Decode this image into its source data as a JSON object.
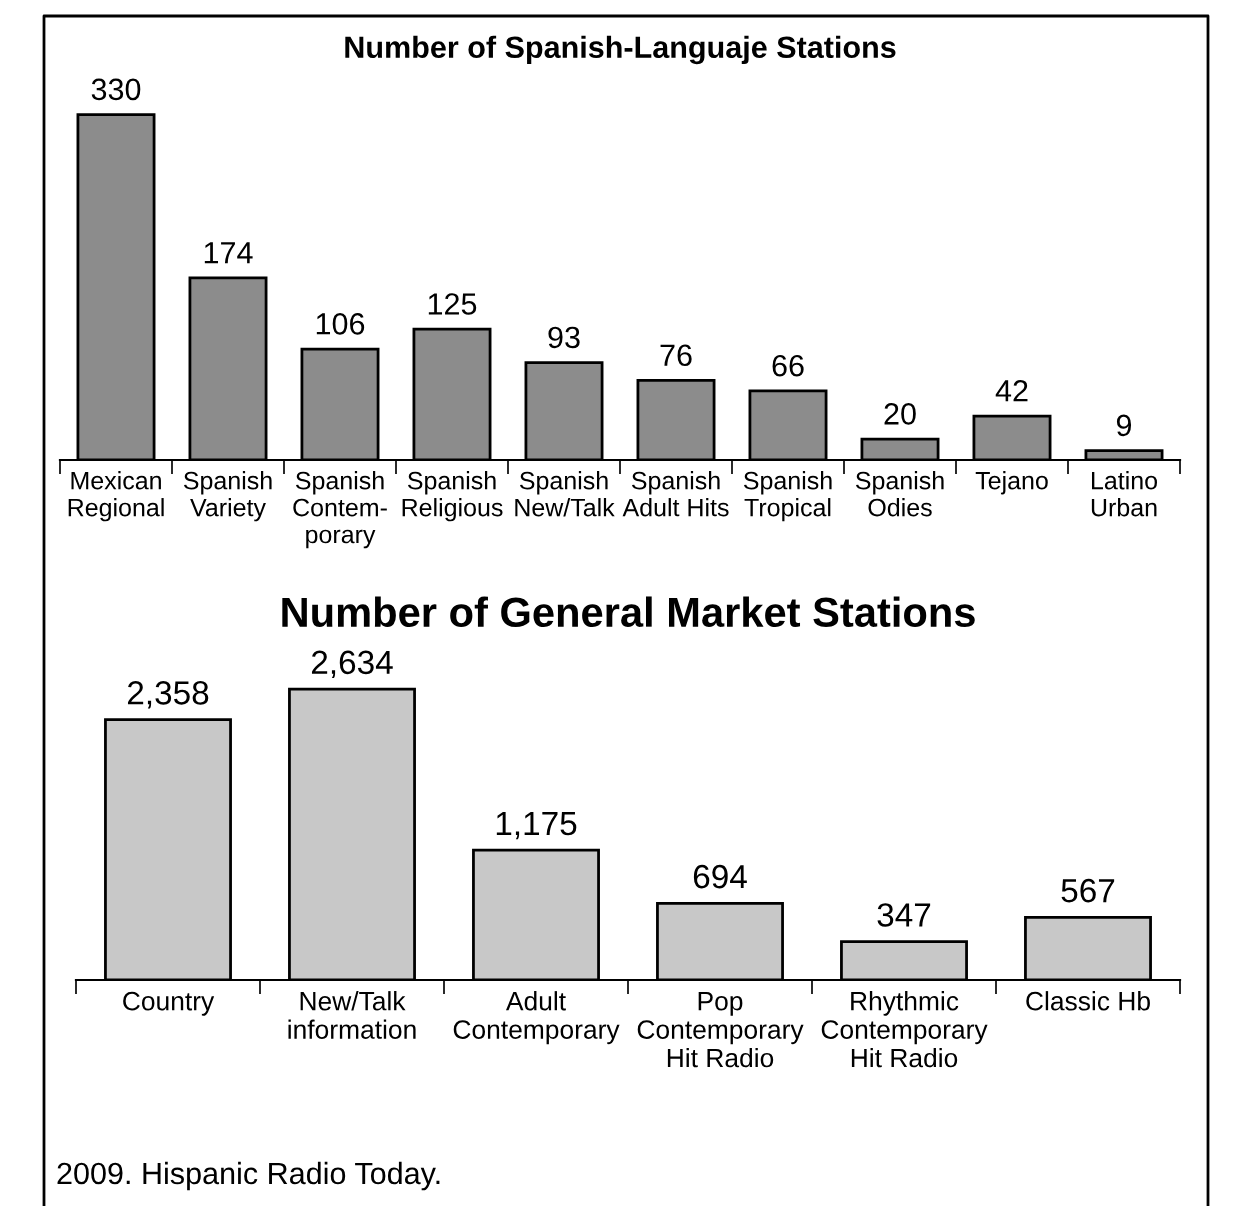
{
  "chart_data": [
    {
      "type": "bar",
      "title": "Number of Spanish-Languaje Stations",
      "categories": [
        "Mexican\nRegional",
        "Spanish\nVariety",
        "Spanish\nContem-\nporary",
        "Spanish\nReligious",
        "Spanish\nNew/Talk",
        "Spanish\nAdult Hits",
        "Spanish\nTropical",
        "Spanish\nOdies",
        "Tejano",
        "Latino\nUrban"
      ],
      "values": [
        330,
        174,
        106,
        125,
        93,
        76,
        66,
        20,
        42,
        9
      ],
      "color": "#8c8c8c",
      "data_labels": true,
      "grid": false
    },
    {
      "type": "bar",
      "title": "Number of General Market Stations",
      "categories": [
        "Country",
        "New/Talk\ninformation",
        "Adult\nContemporary",
        "Pop\nContemporary\nHit Radio",
        "Rhythmic\nContemporary\nHit Radio",
        "Classic Hb"
      ],
      "values": [
        2358,
        2634,
        1175,
        694,
        347,
        567
      ],
      "color": "#c8c8c8",
      "value_labels": [
        "2,358",
        "2,634",
        "1,175",
        "694",
        "347",
        "567"
      ],
      "grid": false,
      "annotations": [
        "2009. Hispanic Radio Today."
      ]
    }
  ]
}
